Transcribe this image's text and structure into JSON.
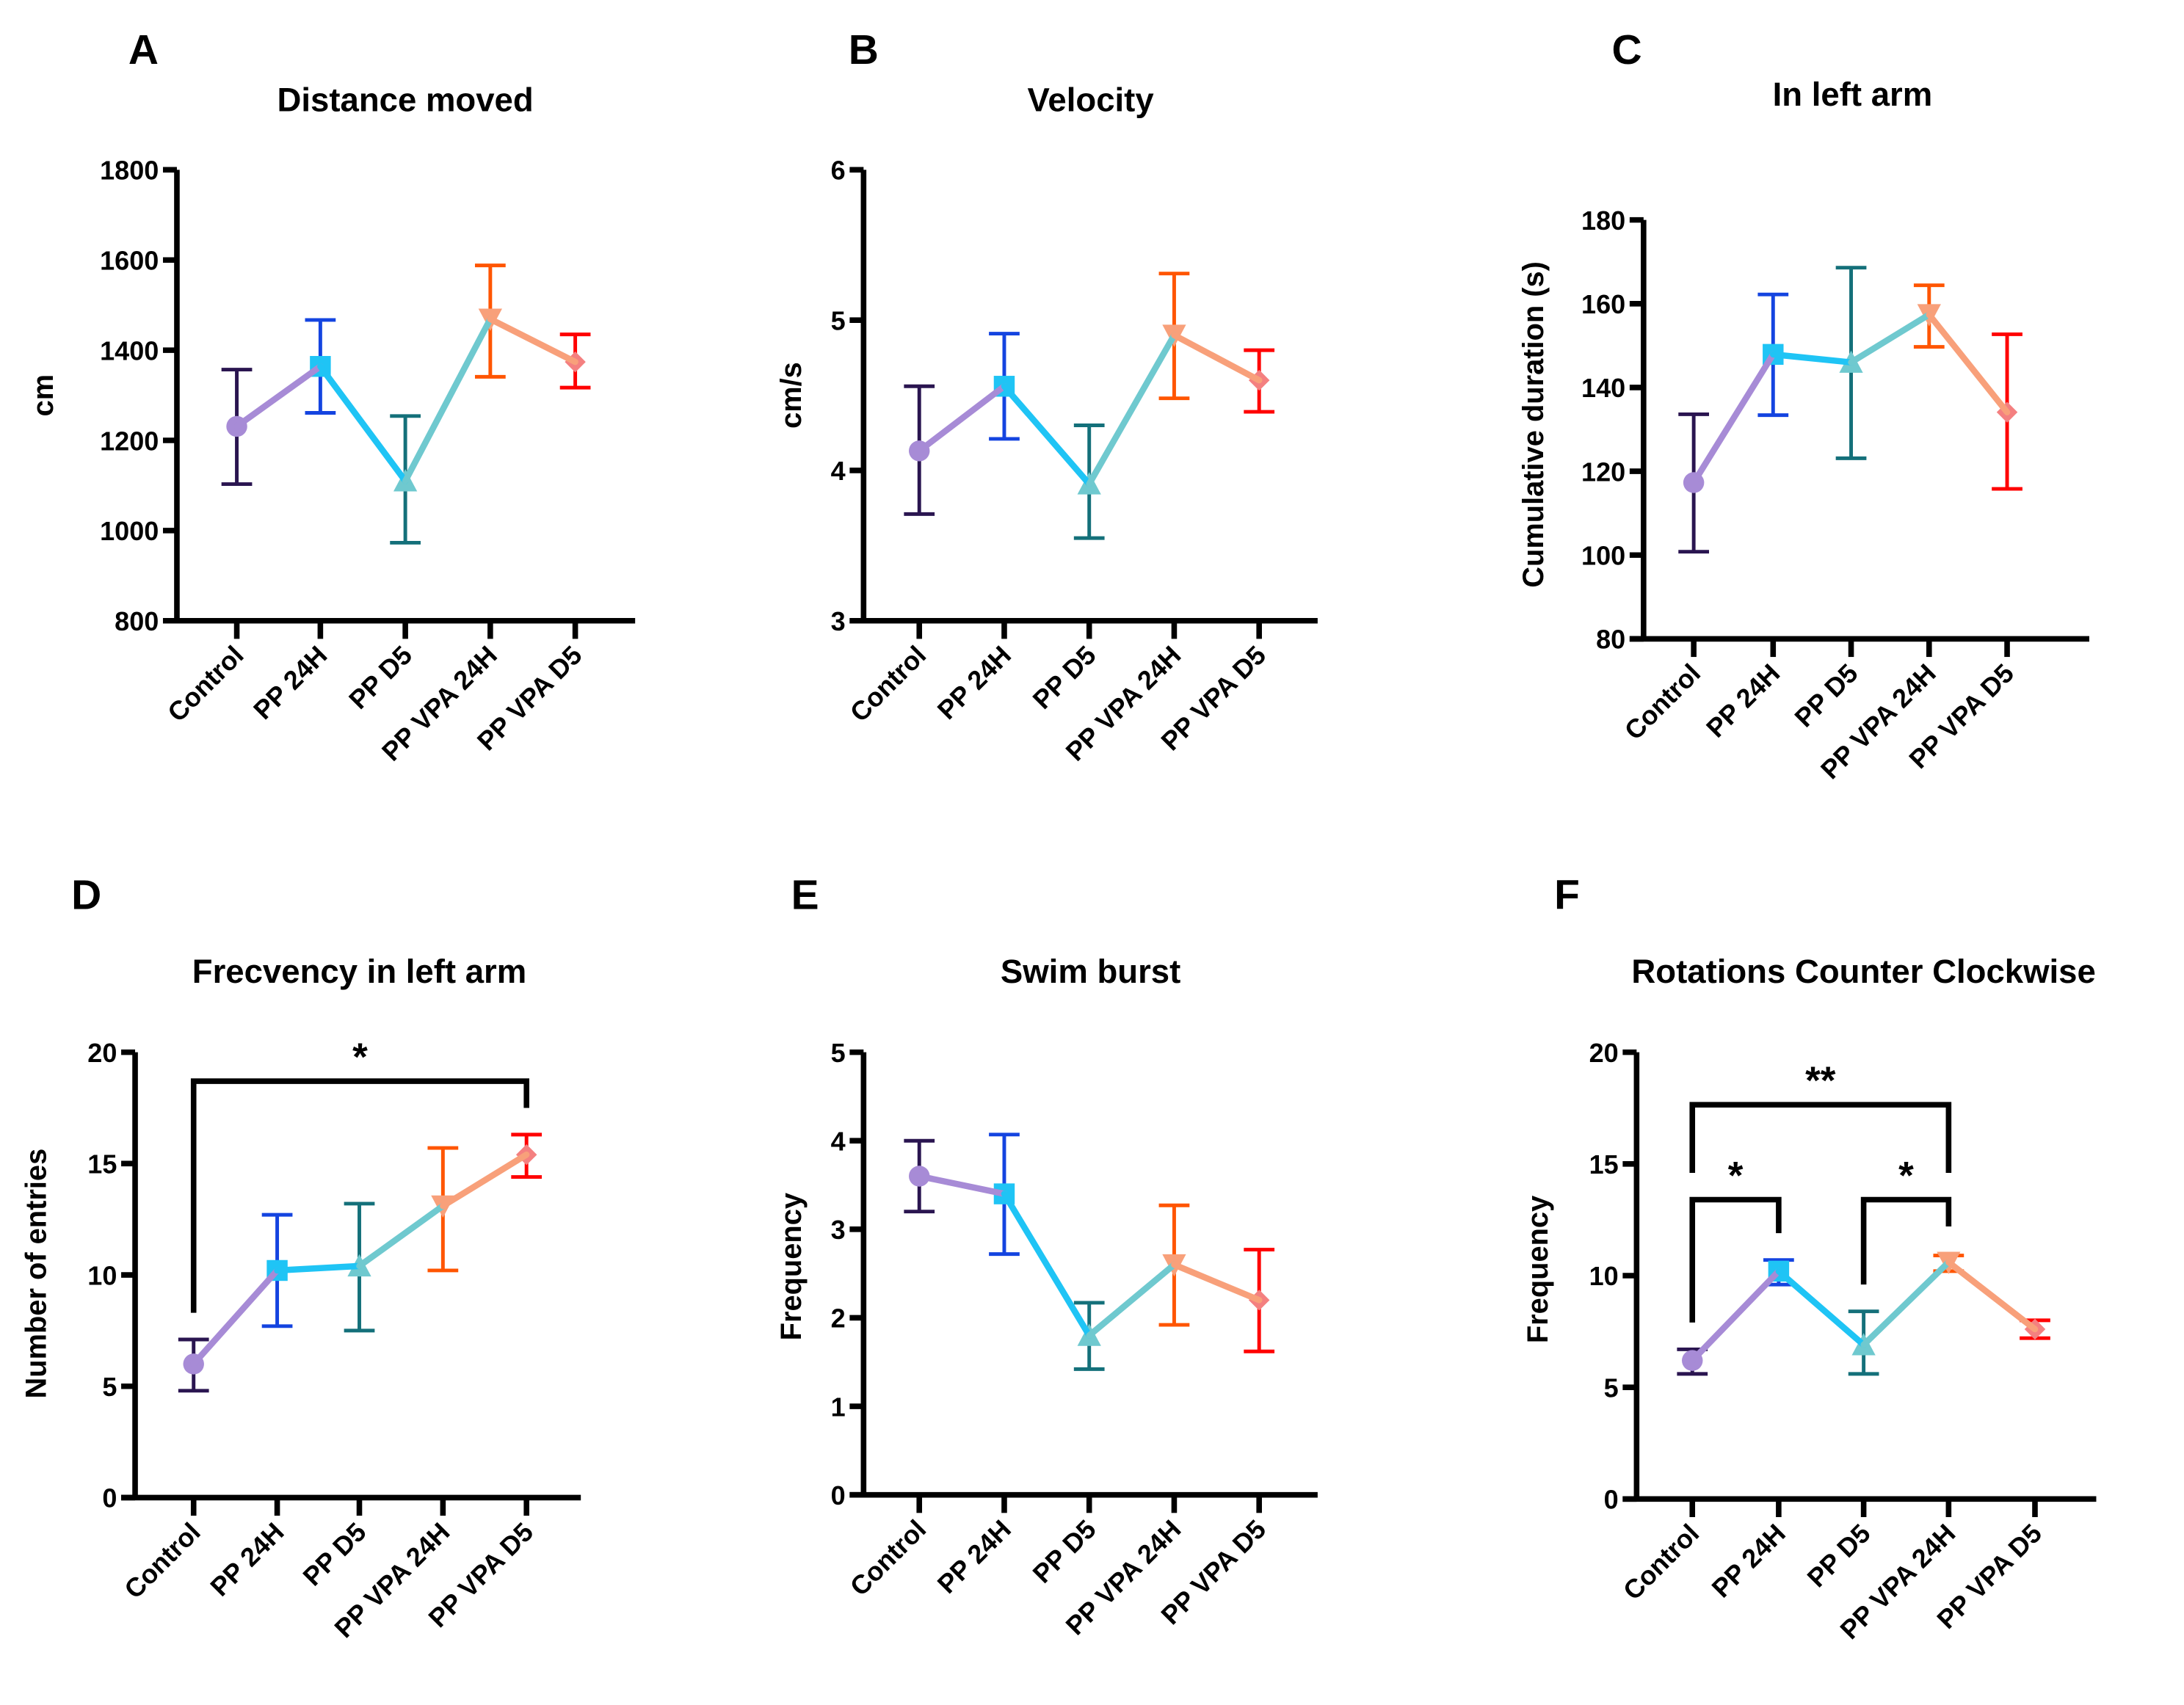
{
  "figure": {
    "groups": [
      "Control",
      "PP 24H",
      "PP D5",
      "PP VPA 24H",
      "PP VPA D5"
    ],
    "group_colors": {
      "marker": [
        "#A78BD6",
        "#1FC4F5",
        "#6FC9CF",
        "#F8A07A",
        "#F48080"
      ],
      "errorbar": [
        "#2A1550",
        "#1444E0",
        "#14707A",
        "#FF5500",
        "#FF0000"
      ],
      "marker_shapes": [
        "circle",
        "square",
        "triangle-up",
        "triangle-down",
        "diamond"
      ]
    }
  },
  "chart_data": [
    {
      "panel": "A",
      "type": "line",
      "title": "Distance moved",
      "xlabel": "",
      "ylabel": "cm",
      "categories": [
        "Control",
        "PP 24H",
        "PP D5",
        "PP VPA 24H",
        "PP VPA D5"
      ],
      "values": [
        1231,
        1364,
        1110,
        1469,
        1374
      ],
      "error_upper": [
        1357,
        1467,
        1254,
        1588,
        1435
      ],
      "error_lower": [
        1103,
        1261,
        973,
        1341,
        1317
      ],
      "ylim": [
        800,
        1800
      ],
      "yticks": [
        800,
        1000,
        1200,
        1400,
        1600,
        1800
      ],
      "grid": false,
      "significance": []
    },
    {
      "panel": "B",
      "type": "line",
      "title": "Velocity",
      "xlabel": "",
      "ylabel": "cm/s",
      "categories": [
        "Control",
        "PP 24H",
        "PP D5",
        "PP VPA 24H",
        "PP VPA D5"
      ],
      "values": [
        4.13,
        4.56,
        3.91,
        4.9,
        4.6
      ],
      "error_upper": [
        4.56,
        4.91,
        4.3,
        5.31,
        4.8
      ],
      "error_lower": [
        3.71,
        4.21,
        3.55,
        4.48,
        4.39
      ],
      "ylim": [
        3,
        6
      ],
      "yticks": [
        3,
        4,
        5,
        6
      ],
      "grid": false,
      "significance": []
    },
    {
      "panel": "C",
      "type": "line",
      "title": "In left arm",
      "xlabel": "",
      "ylabel": "Cumulative duration (s)",
      "categories": [
        "Control",
        "PP 24H",
        "PP D5",
        "PP VPA 24H",
        "PP VPA D5"
      ],
      "values": [
        117.3,
        147.9,
        146.0,
        157.4,
        134.1
      ],
      "error_upper": [
        133.6,
        162.2,
        168.6,
        164.4,
        152.7
      ],
      "error_lower": [
        100.8,
        133.4,
        123.1,
        149.7,
        115.8
      ],
      "ylim": [
        80,
        180
      ],
      "yticks": [
        80,
        100,
        120,
        140,
        160,
        180
      ],
      "grid": false,
      "significance": []
    },
    {
      "panel": "D",
      "type": "line",
      "title": "Frecvency in left arm",
      "xlabel": "",
      "ylabel": "Number of entries",
      "categories": [
        "Control",
        "PP 24H",
        "PP D5",
        "PP VPA 24H",
        "PP VPA D5"
      ],
      "values": [
        6.0,
        10.2,
        10.4,
        13.1,
        15.4
      ],
      "error_upper": [
        7.1,
        12.7,
        13.2,
        15.7,
        16.3
      ],
      "error_lower": [
        4.8,
        7.7,
        7.5,
        10.2,
        14.4
      ],
      "ylim": [
        0,
        20
      ],
      "yticks": [
        0,
        5,
        10,
        15,
        20
      ],
      "grid": false,
      "significance": [
        {
          "from": 0,
          "to": 4,
          "label": "*",
          "level": 18.7,
          "left_end": 8.3,
          "right_end": 17.5
        }
      ]
    },
    {
      "panel": "E",
      "type": "line",
      "title": "Swim burst",
      "xlabel": "",
      "ylabel": "Frequency",
      "categories": [
        "Control",
        "PP 24H",
        "PP D5",
        "PP VPA 24H",
        "PP VPA D5"
      ],
      "values": [
        3.6,
        3.4,
        1.8,
        2.6,
        2.2
      ],
      "error_upper": [
        4.0,
        4.07,
        2.17,
        3.27,
        2.77
      ],
      "error_lower": [
        3.2,
        2.72,
        1.42,
        1.92,
        1.62
      ],
      "ylim": [
        0,
        5
      ],
      "yticks": [
        0,
        1,
        2,
        3,
        4,
        5
      ],
      "grid": false,
      "significance": []
    },
    {
      "panel": "F",
      "type": "line",
      "title": "Rotations Counter Clockwise",
      "xlabel": "",
      "ylabel": "Frequency",
      "categories": [
        "Control",
        "PP 24H",
        "PP D5",
        "PP VPA 24H",
        "PP VPA D5"
      ],
      "values": [
        6.2,
        10.2,
        6.9,
        10.6,
        7.6
      ],
      "error_upper": [
        6.7,
        10.7,
        8.4,
        10.9,
        8.0
      ],
      "error_lower": [
        5.6,
        9.6,
        5.6,
        10.2,
        7.2
      ],
      "ylim": [
        0,
        20
      ],
      "yticks": [
        0,
        5,
        10,
        15,
        20
      ],
      "grid": false,
      "significance": [
        {
          "from": 0,
          "to": 3,
          "label": "**",
          "level": 17.65,
          "left_end": 14.6,
          "right_end": 14.6
        },
        {
          "from": 0,
          "to": 1,
          "label": "*",
          "level": 13.4,
          "left_end": 7.9,
          "right_end": 11.9
        },
        {
          "from": 2,
          "to": 3,
          "label": "*",
          "level": 13.4,
          "left_end": 9.6,
          "right_end": 12.2
        }
      ]
    }
  ]
}
